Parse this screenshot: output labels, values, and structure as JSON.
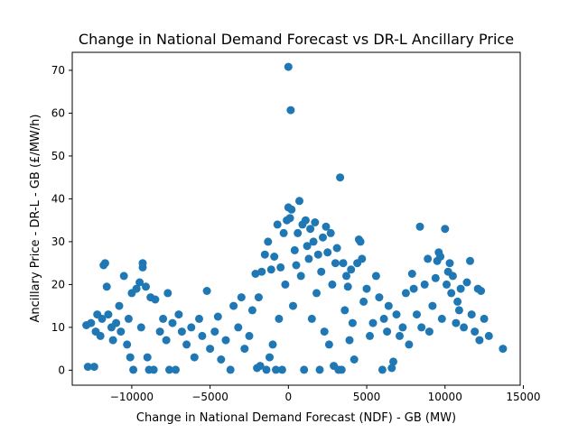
{
  "chart_data": {
    "type": "scatter",
    "title": "Change in National Demand Forecast vs DR-L Ancillary Price",
    "xlabel": "Change in National Demand Forecast (NDF) - GB (MW)",
    "ylabel": "Ancillary Price - DR-L - GB (£/MW/h)",
    "xlim": [
      -13800,
      14800
    ],
    "ylim": [
      -3.5,
      74.2
    ],
    "xticks": [
      -10000,
      -5000,
      0,
      5000,
      10000,
      15000
    ],
    "xtick_labels": [
      "−10000",
      "−5000",
      "0",
      "5000",
      "10000",
      "15000"
    ],
    "yticks": [
      0,
      10,
      20,
      30,
      40,
      50,
      60,
      70
    ],
    "ytick_labels": [
      "0",
      "10",
      "20",
      "30",
      "40",
      "50",
      "60",
      "70"
    ],
    "grid": false,
    "legend": "none",
    "marker_color": "#1f77b4",
    "series": [
      {
        "points": [
          [
            -12900,
            10.5
          ],
          [
            -12800,
            0.8
          ],
          [
            -12600,
            11
          ],
          [
            -12400,
            0.8
          ],
          [
            -12300,
            9
          ],
          [
            -12200,
            13
          ],
          [
            -12000,
            8
          ],
          [
            -11900,
            12
          ],
          [
            -11800,
            24.5
          ],
          [
            -11700,
            25
          ],
          [
            -11600,
            19.5
          ],
          [
            -11500,
            13
          ],
          [
            -11300,
            10
          ],
          [
            -11200,
            7
          ],
          [
            -11000,
            11
          ],
          [
            -10800,
            15
          ],
          [
            -10700,
            9
          ],
          [
            -10500,
            22
          ],
          [
            -10300,
            6
          ],
          [
            -10200,
            12
          ],
          [
            -10100,
            3
          ],
          [
            -10000,
            18
          ],
          [
            -9900,
            0.1
          ],
          [
            -9700,
            19
          ],
          [
            -9500,
            20.5
          ],
          [
            -9400,
            10
          ],
          [
            -9300,
            25
          ],
          [
            -9300,
            24
          ],
          [
            -9100,
            19.5
          ],
          [
            -9000,
            3
          ],
          [
            -8900,
            0.1
          ],
          [
            -8800,
            17
          ],
          [
            -8600,
            0.1
          ],
          [
            -8500,
            16.5
          ],
          [
            -8200,
            9
          ],
          [
            -8000,
            12
          ],
          [
            -7800,
            7
          ],
          [
            -7700,
            18
          ],
          [
            -7600,
            0.1
          ],
          [
            -7400,
            11
          ],
          [
            -7200,
            0.1
          ],
          [
            -7000,
            13
          ],
          [
            -6800,
            9
          ],
          [
            -6500,
            6
          ],
          [
            -6200,
            10
          ],
          [
            -6000,
            3
          ],
          [
            -5700,
            12
          ],
          [
            -5500,
            8
          ],
          [
            -5200,
            18.5
          ],
          [
            -5000,
            5
          ],
          [
            -4700,
            9
          ],
          [
            -4500,
            12.5
          ],
          [
            -4300,
            2.5
          ],
          [
            -4000,
            7
          ],
          [
            -3700,
            0.1
          ],
          [
            -3500,
            15
          ],
          [
            -3200,
            10
          ],
          [
            -3000,
            17
          ],
          [
            -2800,
            5
          ],
          [
            -2500,
            8
          ],
          [
            -2300,
            14
          ],
          [
            -2100,
            22.5
          ],
          [
            -2000,
            0.5
          ],
          [
            -1900,
            17
          ],
          [
            -1800,
            1
          ],
          [
            -1700,
            23
          ],
          [
            -1500,
            27
          ],
          [
            -1400,
            0.1
          ],
          [
            -1300,
            30
          ],
          [
            -1200,
            3
          ],
          [
            -1100,
            23.5
          ],
          [
            -1000,
            6
          ],
          [
            -900,
            26.5
          ],
          [
            -800,
            0.1
          ],
          [
            -700,
            34
          ],
          [
            -600,
            12
          ],
          [
            -500,
            24
          ],
          [
            -400,
            0.1
          ],
          [
            -300,
            32
          ],
          [
            -200,
            20
          ],
          [
            -100,
            35
          ],
          [
            0,
            38
          ],
          [
            0,
            70.8
          ],
          [
            100,
            35.5
          ],
          [
            150,
            60.7
          ],
          [
            200,
            37.5
          ],
          [
            300,
            15
          ],
          [
            400,
            28
          ],
          [
            500,
            24.5
          ],
          [
            600,
            32
          ],
          [
            700,
            39.5
          ],
          [
            800,
            22
          ],
          [
            900,
            34
          ],
          [
            1000,
            0.1
          ],
          [
            1100,
            35
          ],
          [
            1200,
            29
          ],
          [
            1300,
            26
          ],
          [
            1400,
            33
          ],
          [
            1500,
            12
          ],
          [
            1600,
            30
          ],
          [
            1700,
            34.5
          ],
          [
            1800,
            18
          ],
          [
            1900,
            27
          ],
          [
            2000,
            0.1
          ],
          [
            2100,
            23
          ],
          [
            2200,
            31
          ],
          [
            2300,
            9
          ],
          [
            2400,
            33.5
          ],
          [
            2500,
            27.5
          ],
          [
            2600,
            6
          ],
          [
            2700,
            32
          ],
          [
            2800,
            20
          ],
          [
            2900,
            1
          ],
          [
            3000,
            25
          ],
          [
            3100,
            28.5
          ],
          [
            3200,
            0.1
          ],
          [
            3300,
            45
          ],
          [
            3400,
            0.1
          ],
          [
            3500,
            25
          ],
          [
            3600,
            14
          ],
          [
            3700,
            22
          ],
          [
            3800,
            19.5
          ],
          [
            3900,
            7
          ],
          [
            4000,
            23.5
          ],
          [
            4100,
            11
          ],
          [
            4200,
            2.5
          ],
          [
            4400,
            25
          ],
          [
            4500,
            30.5
          ],
          [
            4600,
            30
          ],
          [
            4700,
            26
          ],
          [
            4800,
            16
          ],
          [
            5000,
            19
          ],
          [
            5200,
            8
          ],
          [
            5400,
            11
          ],
          [
            5600,
            22
          ],
          [
            5800,
            17
          ],
          [
            6000,
            0.1
          ],
          [
            6100,
            12
          ],
          [
            6300,
            9
          ],
          [
            6400,
            15
          ],
          [
            6600,
            0.5
          ],
          [
            6700,
            2
          ],
          [
            6900,
            13
          ],
          [
            7100,
            8
          ],
          [
            7300,
            10
          ],
          [
            7500,
            18
          ],
          [
            7700,
            6
          ],
          [
            7900,
            22.5
          ],
          [
            8000,
            19
          ],
          [
            8200,
            13
          ],
          [
            8400,
            33.5
          ],
          [
            8500,
            10
          ],
          [
            8700,
            20
          ],
          [
            8900,
            26
          ],
          [
            9000,
            9
          ],
          [
            9200,
            15
          ],
          [
            9400,
            21.5
          ],
          [
            9500,
            25.5
          ],
          [
            9600,
            27.5
          ],
          [
            9700,
            26.5
          ],
          [
            9800,
            12
          ],
          [
            10000,
            33
          ],
          [
            10100,
            20
          ],
          [
            10200,
            23
          ],
          [
            10300,
            25
          ],
          [
            10400,
            18
          ],
          [
            10500,
            22
          ],
          [
            10700,
            11
          ],
          [
            10800,
            16
          ],
          [
            10900,
            14
          ],
          [
            11000,
            19
          ],
          [
            11200,
            10
          ],
          [
            11400,
            20.5
          ],
          [
            11600,
            25.5
          ],
          [
            11700,
            13
          ],
          [
            11900,
            9
          ],
          [
            12100,
            19
          ],
          [
            12200,
            7
          ],
          [
            12300,
            18.5
          ],
          [
            12500,
            12
          ],
          [
            12800,
            8
          ],
          [
            13700,
            5
          ]
        ]
      }
    ]
  }
}
